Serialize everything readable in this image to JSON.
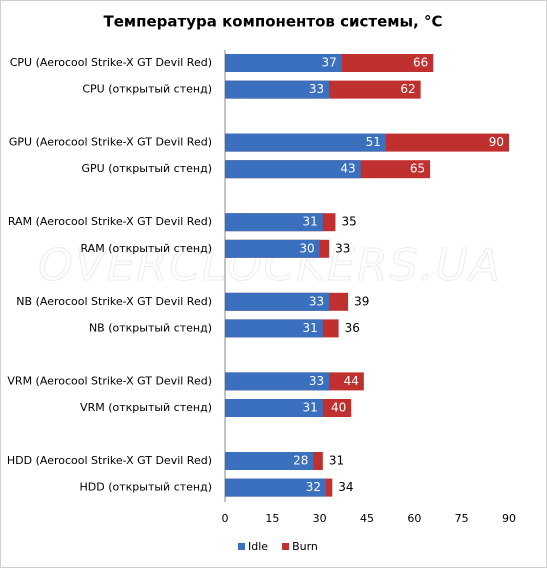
{
  "chart_data": {
    "type": "bar",
    "orientation": "horizontal",
    "overlap": true,
    "title": "Температура компонентов системы, °C",
    "watermark": "OVERCLOCKERS.UA",
    "categories": [
      "CPU (Aerocool Strike-X GT Devil Red)",
      "CPU (открытый стенд)",
      "GPU (Aerocool Strike-X GT Devil Red)",
      "GPU (открытый стенд)",
      "RAM (Aerocool Strike-X GT Devil Red)",
      "RAM (открытый стенд)",
      "NB (Aerocool Strike-X GT Devil Red)",
      "NB (открытый стенд)",
      "VRM (Aerocool Strike-X GT Devil Red)",
      "VRM (открытый стенд)",
      "HDD (Aerocool Strike-X GT Devil Red)",
      "HDD (открытый стенд)"
    ],
    "series": [
      {
        "name": "Idle",
        "color": "#3b70bf",
        "values": [
          37,
          33,
          51,
          43,
          31,
          30,
          33,
          31,
          33,
          31,
          28,
          32
        ]
      },
      {
        "name": "Burn",
        "color": "#c0302e",
        "values": [
          66,
          62,
          90,
          65,
          35,
          33,
          39,
          36,
          44,
          40,
          31,
          34
        ]
      }
    ],
    "xlim": [
      0,
      90
    ],
    "xticks": [
      0,
      15,
      30,
      45,
      60,
      75,
      90
    ],
    "legend": "bottom"
  }
}
